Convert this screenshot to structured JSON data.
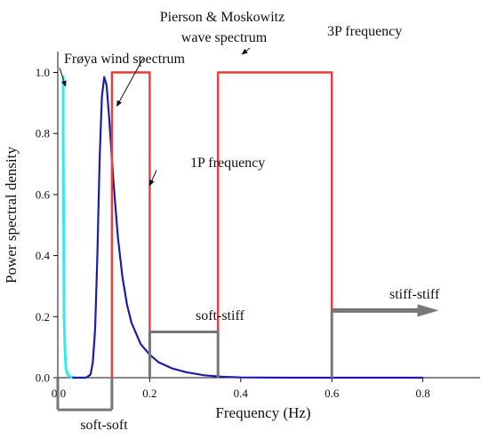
{
  "chart_data": {
    "type": "line",
    "xlabel": "Frequency (Hz)",
    "ylabel": "Power spectral density",
    "xlim": [
      -0.07,
      0.84
    ],
    "ylim": [
      0,
      1.08
    ],
    "x_ticks": [
      0.0,
      0.2,
      0.4,
      0.6,
      0.8
    ],
    "x_tick_labels": [
      "0.0",
      "0.2",
      "0.4",
      "0.6",
      "0.8"
    ],
    "y_ticks": [
      0.0,
      0.2,
      0.4,
      0.6,
      0.8,
      1.0
    ],
    "y_tick_labels": [
      "0.0",
      "0.2",
      "0.4",
      "0.6",
      "0.8",
      "1.0"
    ],
    "grid": false,
    "series": [
      {
        "name": "Frøya wind spectrum",
        "color": "#33e8f0",
        "x": [
          0.01,
          0.01,
          0.011,
          0.012,
          0.014,
          0.016,
          0.02,
          0.025,
          0.03,
          0.035
        ],
        "y": [
          0.99,
          0.8,
          0.5,
          0.2,
          0.08,
          0.03,
          0.01,
          0.004,
          0.001,
          0.0
        ]
      },
      {
        "name": "Pierson & Moskowitz wave spectrum",
        "color": "#1c1ca8",
        "x": [
          0.03,
          0.06,
          0.07,
          0.075,
          0.08,
          0.085,
          0.09,
          0.095,
          0.1,
          0.105,
          0.11,
          0.115,
          0.12,
          0.13,
          0.14,
          0.15,
          0.16,
          0.18,
          0.2,
          0.22,
          0.25,
          0.28,
          0.32,
          0.36,
          0.4,
          0.5,
          0.6,
          0.7,
          0.8
        ],
        "y": [
          0.0,
          0.0,
          0.01,
          0.05,
          0.16,
          0.4,
          0.72,
          0.92,
          0.985,
          0.96,
          0.87,
          0.76,
          0.65,
          0.46,
          0.33,
          0.24,
          0.18,
          0.11,
          0.075,
          0.05,
          0.03,
          0.018,
          0.008,
          0.003,
          0.001,
          0.0,
          0.0,
          0.0,
          0.0
        ]
      },
      {
        "name": "1P frequency",
        "color": "#ee3a3a",
        "x": [
          0.117,
          0.117,
          0.2,
          0.2
        ],
        "y": [
          0.0,
          1.0,
          1.0,
          0.0
        ]
      },
      {
        "name": "3P frequency",
        "color": "#ee3a3a",
        "x": [
          0.35,
          0.35,
          0.6,
          0.6
        ],
        "y": [
          0.0,
          1.0,
          1.0,
          0.0
        ]
      }
    ],
    "regions": [
      {
        "label": "soft-soft",
        "x": [
          -0.07,
          0.117
        ],
        "y": -0.105,
        "color": "#777777"
      },
      {
        "label": "soft-stiff",
        "x": [
          0.2,
          0.35
        ],
        "y": 0.15,
        "color": "#777777"
      },
      {
        "label": "stiff-stiff",
        "x": [
          0.6,
          0.835
        ],
        "y": 0.22,
        "color": "#777777"
      }
    ],
    "annotations": [
      {
        "name": "froya",
        "text": "Frøya wind spectrum",
        "tip": [
          0.015,
          0.955
        ],
        "from": [
          0.002,
          1.015
        ]
      },
      {
        "name": "pm-line1",
        "text": "Pierson & Moskowitz"
      },
      {
        "name": "pm-line2",
        "text": "wave spectrum",
        "tip": [
          0.128,
          0.89
        ],
        "from": [
          0.185,
          1.045
        ]
      },
      {
        "name": "p1",
        "text": "1P frequency",
        "tip": [
          0.2,
          0.63
        ],
        "from": [
          0.215,
          0.68
        ]
      },
      {
        "name": "p3",
        "text": "3P frequency",
        "tip": [
          0.403,
          1.06
        ],
        "from": [
          0.42,
          1.08
        ]
      }
    ]
  }
}
